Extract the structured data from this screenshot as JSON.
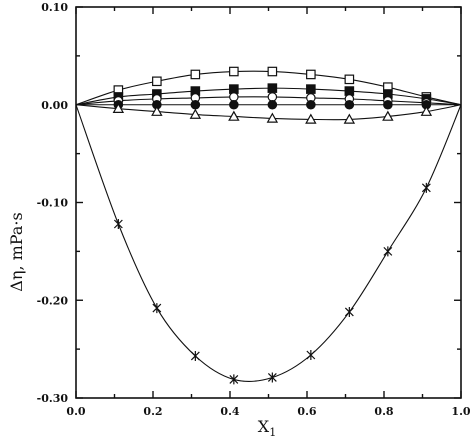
{
  "chart_data": {
    "type": "line",
    "xlabel": "X",
    "xlabel_sub": "1",
    "ylabel": "Δη, mPa·s",
    "xlim": [
      0.0,
      1.0
    ],
    "ylim": [
      -0.3,
      0.1
    ],
    "x_ticks": [
      0.0,
      0.2,
      0.4,
      0.6,
      0.8,
      1.0
    ],
    "x_tick_labels": [
      "0.0",
      "0.2",
      "0.4",
      "0.6",
      "0.8",
      "1.0"
    ],
    "x_minor_ticks": [
      0.1,
      0.3,
      0.5,
      0.7,
      0.9
    ],
    "y_ticks": [
      0.1,
      0.0,
      -0.1,
      -0.2,
      -0.3
    ],
    "y_tick_labels": [
      "0.10",
      "0.00",
      "-0.10",
      "-0.20",
      "-0.30"
    ],
    "y_minor_ticks": [
      0.05,
      -0.05,
      -0.15,
      -0.25
    ],
    "grid": false,
    "series": [
      {
        "marker": "open-square",
        "x": [
          0.11,
          0.21,
          0.31,
          0.41,
          0.51,
          0.61,
          0.71,
          0.81,
          0.91
        ],
        "y": [
          0.015,
          0.024,
          0.031,
          0.034,
          0.034,
          0.031,
          0.026,
          0.018,
          0.008
        ]
      },
      {
        "marker": "filled-square",
        "x": [
          0.11,
          0.21,
          0.31,
          0.41,
          0.51,
          0.61,
          0.71,
          0.81,
          0.91
        ],
        "y": [
          0.008,
          0.011,
          0.014,
          0.016,
          0.017,
          0.016,
          0.014,
          0.011,
          0.006
        ]
      },
      {
        "marker": "open-circle",
        "x": [
          0.11,
          0.21,
          0.31,
          0.41,
          0.51,
          0.61,
          0.71,
          0.81,
          0.91
        ],
        "y": [
          0.004,
          0.006,
          0.007,
          0.008,
          0.008,
          0.007,
          0.006,
          0.004,
          0.002
        ]
      },
      {
        "marker": "filled-circle",
        "x": [
          0.11,
          0.21,
          0.31,
          0.41,
          0.51,
          0.61,
          0.71,
          0.81,
          0.91
        ],
        "y": [
          0.0,
          0.0,
          0.0,
          0.0,
          0.0,
          0.0,
          0.0,
          0.0,
          0.0
        ]
      },
      {
        "marker": "open-triangle",
        "x": [
          0.11,
          0.21,
          0.31,
          0.41,
          0.51,
          0.61,
          0.71,
          0.81,
          0.91
        ],
        "y": [
          -0.004,
          -0.007,
          -0.01,
          -0.012,
          -0.014,
          -0.015,
          -0.015,
          -0.012,
          -0.007
        ]
      },
      {
        "marker": "star",
        "x": [
          0.11,
          0.21,
          0.31,
          0.41,
          0.51,
          0.61,
          0.71,
          0.81,
          0.91
        ],
        "y": [
          -0.122,
          -0.208,
          -0.257,
          -0.281,
          -0.279,
          -0.256,
          -0.212,
          -0.15,
          -0.085
        ]
      }
    ]
  }
}
